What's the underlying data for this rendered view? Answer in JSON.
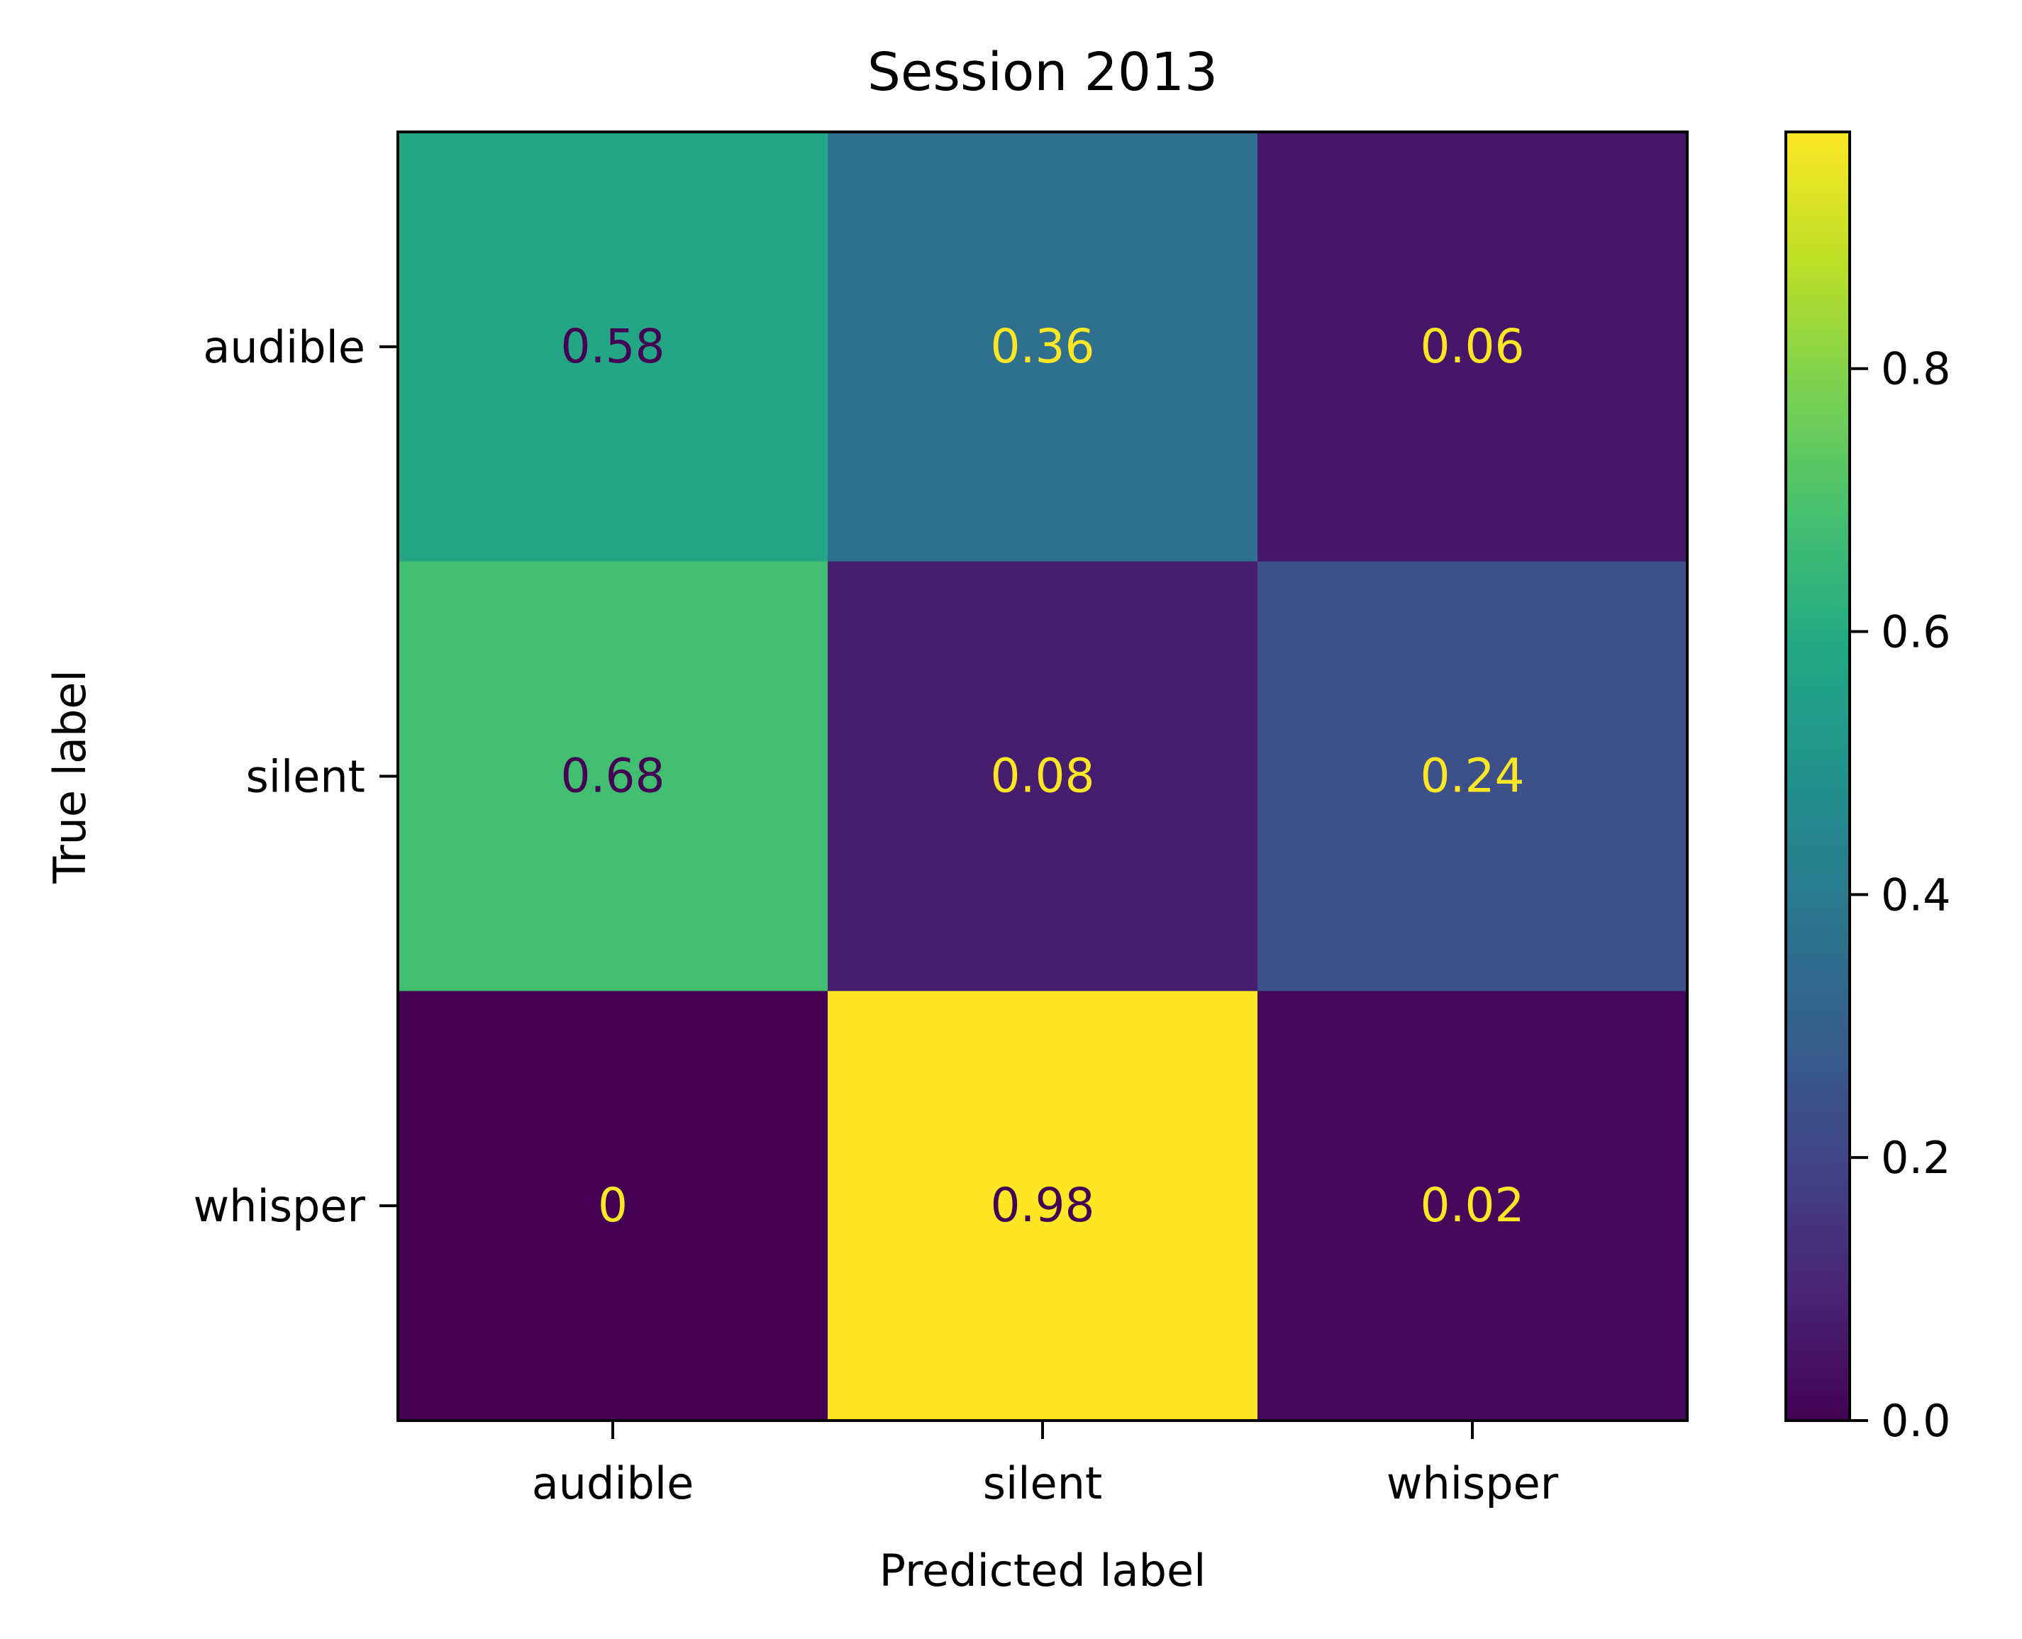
{
  "chart_data": {
    "type": "heatmap",
    "title": "Session 2013",
    "xlabel": "Predicted label",
    "ylabel": "True label",
    "x_categories": [
      "audible",
      "silent",
      "whisper"
    ],
    "y_categories": [
      "audible",
      "silent",
      "whisper"
    ],
    "values": [
      [
        0.58,
        0.36,
        0.06
      ],
      [
        0.68,
        0.08,
        0.24
      ],
      [
        0,
        0.98,
        0.02
      ]
    ],
    "cell_labels": [
      [
        "0.58",
        "0.36",
        "0.06"
      ],
      [
        "0.68",
        "0.08",
        "0.24"
      ],
      [
        "0",
        "0.98",
        "0.02"
      ]
    ],
    "colormap": "viridis",
    "colorbar": {
      "range": [
        0,
        0.98
      ],
      "ticks": [
        0.0,
        0.2,
        0.4,
        0.6,
        0.8
      ],
      "tick_labels": [
        "0.0",
        "0.2",
        "0.4",
        "0.6",
        "0.8"
      ]
    },
    "text_colors": {
      "dark": "#440154",
      "light": "#fde725"
    }
  }
}
